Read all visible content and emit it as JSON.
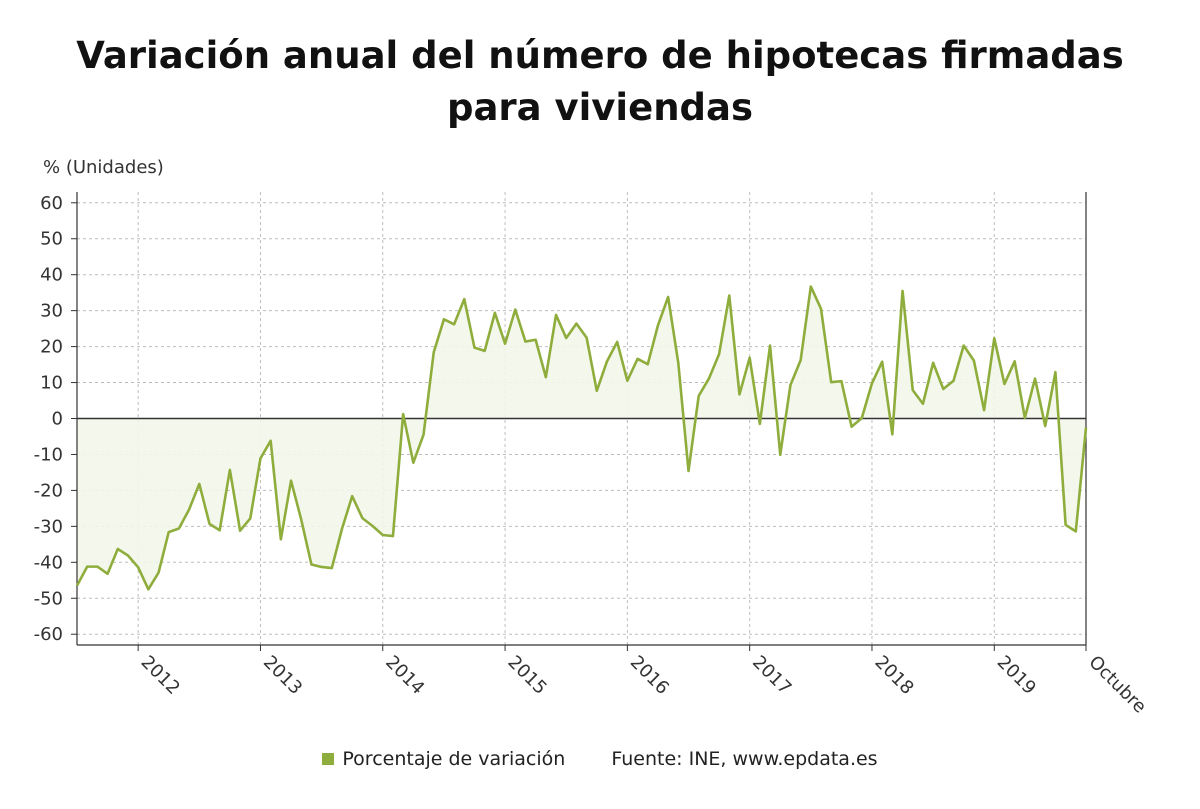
{
  "chart_data": {
    "type": "area",
    "title": "Variación anual del número de hipotecas firmadas para viviendas",
    "ylabel": "% (Unidades)",
    "xlabel": "",
    "ylim": [
      -63,
      63
    ],
    "yticks": [
      -60,
      -50,
      -40,
      -30,
      -20,
      -10,
      0,
      10,
      20,
      30,
      40,
      50,
      60
    ],
    "x_tick_labels": [
      "2012",
      "2013",
      "2014",
      "2015",
      "2016",
      "2017",
      "2018",
      "2019",
      "Octubre"
    ],
    "grid": true,
    "legend_position": "bottom",
    "x_start": "2011-07",
    "x_end": "2019-10",
    "series": [
      {
        "name": "Porcentaje de variación",
        "color": "#8fad3c",
        "values": [
          -46.5,
          -41.2,
          -41.2,
          -43.2,
          -36.3,
          -38.1,
          -41.4,
          -47.5,
          -42.9,
          -31.6,
          -30.6,
          -25.3,
          -18.2,
          -29.3,
          -31.1,
          -14.3,
          -31.2,
          -27.8,
          -11.1,
          -6.2,
          -33.6,
          -17.3,
          -28.1,
          -40.6,
          -41.3,
          -41.6,
          -30.7,
          -21.6,
          -27.7,
          -29.9,
          -32.4,
          -32.7,
          1.2,
          -12.3,
          -4.5,
          18.4,
          27.6,
          26.2,
          33.2,
          19.7,
          18.8,
          29.4,
          20.8,
          30.3,
          21.4,
          21.9,
          11.5,
          28.8,
          22.4,
          26.4,
          22.5,
          7.7,
          15.9,
          21.3,
          10.5,
          16.6,
          15.1,
          25.9,
          33.8,
          15.4,
          -14.6,
          6.3,
          11.1,
          17.9,
          34.2,
          6.7,
          16.9,
          -1.5,
          20.3,
          -10.1,
          9.3,
          16.2,
          36.7,
          30.5,
          10.1,
          10.4,
          -2.3,
          0.1,
          9.8,
          15.8,
          -4.4,
          35.5,
          7.9,
          4.1,
          15.5,
          8.2,
          10.5,
          20.3,
          16.1,
          2.3,
          22.3,
          9.6,
          15.9,
          0.2,
          11.1,
          -2.1,
          12.9,
          -29.6,
          -31.4,
          -2.5
        ]
      }
    ]
  },
  "legend": {
    "series_label": "Porcentaje de variación",
    "source": "Fuente: INE, www.epdata.es"
  }
}
